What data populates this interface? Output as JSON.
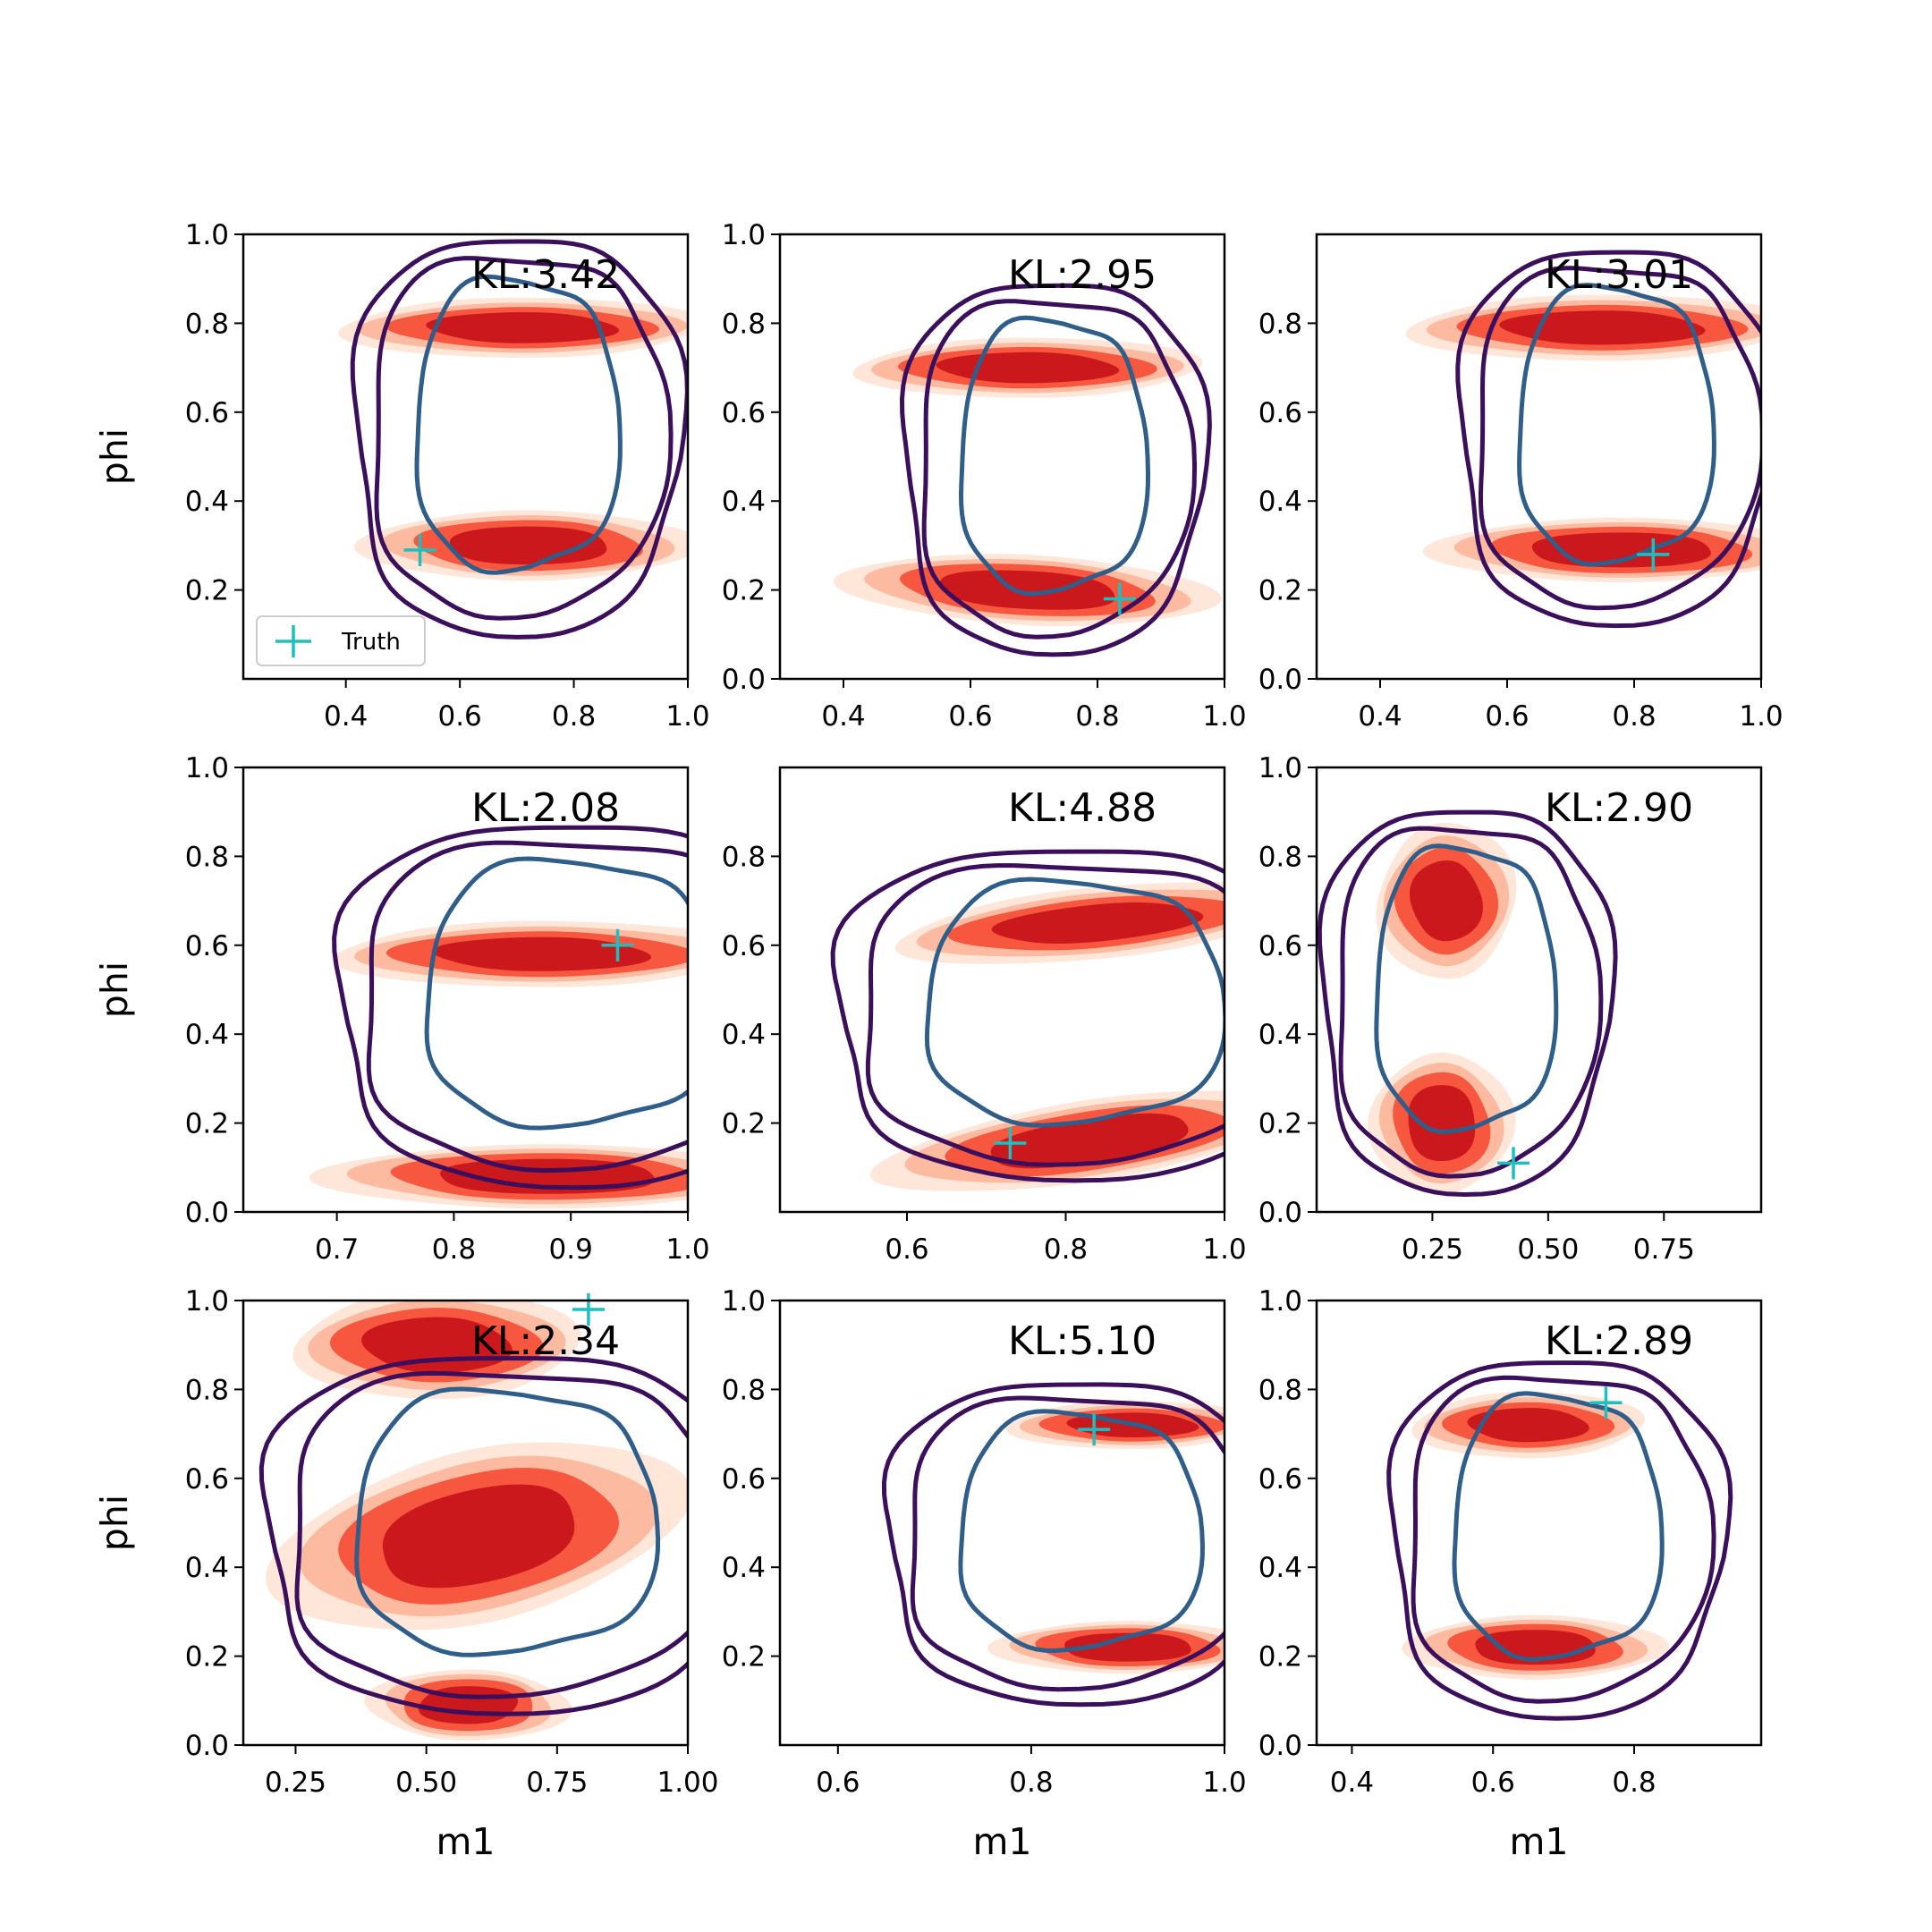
{
  "chart_data": {
    "type": "contour",
    "layout": {
      "rows": 3,
      "cols": 3
    },
    "xlabel": "m1",
    "ylabel": "phi",
    "legend": {
      "label": "Truth",
      "marker": "plus",
      "color": "#1fbfbf",
      "placement": "lower-left"
    },
    "colors": {
      "filled_levels": [
        "#fee6d9",
        "#fcbba1",
        "#f6573e",
        "#cb181d"
      ],
      "outer_contours": "#3b0f5c",
      "inner_contour": "#2f5e8a",
      "truth_marker": "#1fbfbf"
    },
    "panels": [
      {
        "kl_label": "KL:3.42",
        "xlim": [
          0.22,
          1.0
        ],
        "ylim": [
          0.0,
          1.0
        ],
        "xticks": [
          "0.4",
          "0.6",
          "0.8",
          "1.0"
        ],
        "yticks": [
          "0.2",
          "0.4",
          "0.6",
          "0.8",
          "1.0"
        ],
        "truth": [
          0.53,
          0.29
        ],
        "ref_center": [
          0.7,
          0.55
        ],
        "ref_width": 0.285,
        "ref_height": 0.89,
        "blobs": [
          {
            "cx": 0.71,
            "cy": 0.79,
            "w": 0.47,
            "h": 0.1,
            "tilt": 0.0
          },
          {
            "cx": 0.72,
            "cy": 0.3,
            "w": 0.42,
            "h": 0.12,
            "tilt": 0.0
          }
        ],
        "show_legend": true,
        "show_ylabel": true,
        "show_xlabel": false
      },
      {
        "kl_label": "KL:2.95",
        "xlim": [
          0.3,
          1.0
        ],
        "ylim": [
          0.0,
          1.0
        ],
        "xticks": [
          "0.4",
          "0.6",
          "0.8",
          "1.0"
        ],
        "yticks": [
          "0.0",
          "0.2",
          "0.4",
          "0.6",
          "0.8",
          "1.0"
        ],
        "truth": [
          0.835,
          0.18
        ],
        "ref_center": [
          0.73,
          0.48
        ],
        "ref_width": 0.235,
        "ref_height": 0.83,
        "blobs": [
          {
            "cx": 0.69,
            "cy": 0.7,
            "w": 0.4,
            "h": 0.1,
            "tilt": 0.0
          },
          {
            "cx": 0.69,
            "cy": 0.2,
            "w": 0.42,
            "h": 0.12,
            "tilt": -0.03
          }
        ],
        "show_legend": false,
        "show_ylabel": false,
        "show_xlabel": false
      },
      {
        "kl_label": "KL:3.01",
        "xlim": [
          0.3,
          1.0
        ],
        "ylim": [
          0.0,
          1.0
        ],
        "xticks": [
          "0.4",
          "0.6",
          "0.8",
          "1.0"
        ],
        "yticks": [
          "0.0",
          "0.2",
          "0.4",
          "0.6",
          "0.8"
        ],
        "truth": [
          0.83,
          0.28
        ],
        "ref_center": [
          0.77,
          0.55
        ],
        "ref_width": 0.245,
        "ref_height": 0.84,
        "blobs": [
          {
            "cx": 0.75,
            "cy": 0.79,
            "w": 0.45,
            "h": 0.11,
            "tilt": 0.0
          },
          {
            "cx": 0.78,
            "cy": 0.29,
            "w": 0.43,
            "h": 0.11,
            "tilt": 0.0
          }
        ],
        "show_legend": false,
        "show_ylabel": false,
        "show_xlabel": false
      },
      {
        "kl_label": "KL:2.08",
        "xlim": [
          0.62,
          1.0
        ],
        "ylim": [
          0.0,
          1.0
        ],
        "xticks": [
          "0.7",
          "0.8",
          "0.9",
          "1.0"
        ],
        "yticks": [
          "0.0",
          "0.2",
          "0.4",
          "0.6",
          "0.8",
          "1.0"
        ],
        "truth": [
          0.94,
          0.6
        ],
        "ref_center": [
          0.9,
          0.47
        ],
        "ref_width": 0.2,
        "ref_height": 0.81,
        "blobs": [
          {
            "cx": 0.875,
            "cy": 0.58,
            "w": 0.26,
            "h": 0.11,
            "tilt": 0.0
          },
          {
            "cx": 0.88,
            "cy": 0.08,
            "w": 0.28,
            "h": 0.11,
            "tilt": 0.0
          }
        ],
        "show_legend": false,
        "show_ylabel": true,
        "show_xlabel": false
      },
      {
        "kl_label": "KL:4.88",
        "xlim": [
          0.44,
          1.0
        ],
        "ylim": [
          0.0,
          1.0
        ],
        "xticks": [
          "0.6",
          "0.8",
          "1.0"
        ],
        "yticks": [
          "0.2",
          "0.4",
          "0.6",
          "0.8"
        ],
        "truth": [
          0.73,
          0.155
        ],
        "ref_center": [
          0.81,
          0.45
        ],
        "ref_width": 0.3,
        "ref_height": 0.74,
        "blobs": [
          {
            "cx": 0.84,
            "cy": 0.65,
            "w": 0.37,
            "h": 0.12,
            "tilt": 0.06
          },
          {
            "cx": 0.83,
            "cy": 0.16,
            "w": 0.38,
            "h": 0.14,
            "tilt": 0.1
          }
        ],
        "show_legend": false,
        "show_ylabel": false,
        "show_xlabel": false
      },
      {
        "kl_label": "KL:2.90",
        "xlim": [
          0.0,
          0.96
        ],
        "ylim": [
          0.0,
          1.0
        ],
        "xticks": [
          "0.25",
          "0.50",
          "0.75"
        ],
        "yticks": [
          "0.0",
          "0.2",
          "0.4",
          "0.6",
          "0.8",
          "1.0"
        ],
        "truth": [
          0.425,
          0.11
        ],
        "ref_center": [
          0.32,
          0.48
        ],
        "ref_width": 0.31,
        "ref_height": 0.86,
        "blobs": [
          {
            "cx": 0.28,
            "cy": 0.7,
            "w": 0.22,
            "h": 0.26,
            "tilt": 0.0
          },
          {
            "cx": 0.27,
            "cy": 0.2,
            "w": 0.22,
            "h": 0.24,
            "tilt": 0.0
          }
        ],
        "show_legend": false,
        "show_ylabel": false,
        "show_xlabel": false
      },
      {
        "kl_label": "KL:2.34",
        "xlim": [
          0.15,
          1.0
        ],
        "ylim": [
          0.0,
          1.0
        ],
        "xticks": [
          "0.25",
          "0.50",
          "0.75",
          "1.00"
        ],
        "yticks": [
          "0.0",
          "0.2",
          "0.4",
          "0.6",
          "0.8",
          "1.0"
        ],
        "truth": [
          0.81,
          0.98
        ],
        "ref_center": [
          0.65,
          0.48
        ],
        "ref_width": 0.46,
        "ref_height": 0.8,
        "blobs": [
          {
            "cx": 0.52,
            "cy": 0.9,
            "w": 0.4,
            "h": 0.18,
            "tilt": 0.0
          },
          {
            "cx": 0.6,
            "cy": 0.47,
            "w": 0.56,
            "h": 0.3,
            "tilt": 0.12
          },
          {
            "cx": 0.58,
            "cy": 0.09,
            "w": 0.28,
            "h": 0.12,
            "tilt": 0.0
          }
        ],
        "show_legend": false,
        "show_ylabel": true,
        "show_xlabel": true
      },
      {
        "kl_label": "KL:5.10",
        "xlim": [
          0.54,
          1.0
        ],
        "ylim": [
          0.0,
          1.0
        ],
        "xticks": [
          "0.6",
          "0.8",
          "1.0"
        ],
        "yticks": [
          "0.2",
          "0.4",
          "0.6",
          "0.8",
          "1.0"
        ],
        "truth": [
          0.865,
          0.71
        ],
        "ref_center": [
          0.85,
          0.46
        ],
        "ref_width": 0.2,
        "ref_height": 0.72,
        "blobs": [
          {
            "cx": 0.905,
            "cy": 0.72,
            "w": 0.19,
            "h": 0.08,
            "tilt": 0.0
          },
          {
            "cx": 0.9,
            "cy": 0.22,
            "w": 0.2,
            "h": 0.09,
            "tilt": 0.0
          }
        ],
        "show_legend": false,
        "show_ylabel": false,
        "show_xlabel": true
      },
      {
        "kl_label": "KL:2.89",
        "xlim": [
          0.35,
          0.98
        ],
        "ylim": [
          0.0,
          1.0
        ],
        "xticks": [
          "0.4",
          "0.6",
          "0.8"
        ],
        "yticks": [
          "0.0",
          "0.2",
          "0.4",
          "0.6",
          "0.8",
          "1.0"
        ],
        "truth": [
          0.76,
          0.77
        ],
        "ref_center": [
          0.69,
          0.47
        ],
        "ref_width": 0.235,
        "ref_height": 0.8,
        "blobs": [
          {
            "cx": 0.65,
            "cy": 0.72,
            "w": 0.24,
            "h": 0.11,
            "tilt": 0.0
          },
          {
            "cx": 0.66,
            "cy": 0.22,
            "w": 0.26,
            "h": 0.11,
            "tilt": 0.0
          }
        ],
        "show_legend": false,
        "show_ylabel": false,
        "show_xlabel": true
      }
    ]
  }
}
